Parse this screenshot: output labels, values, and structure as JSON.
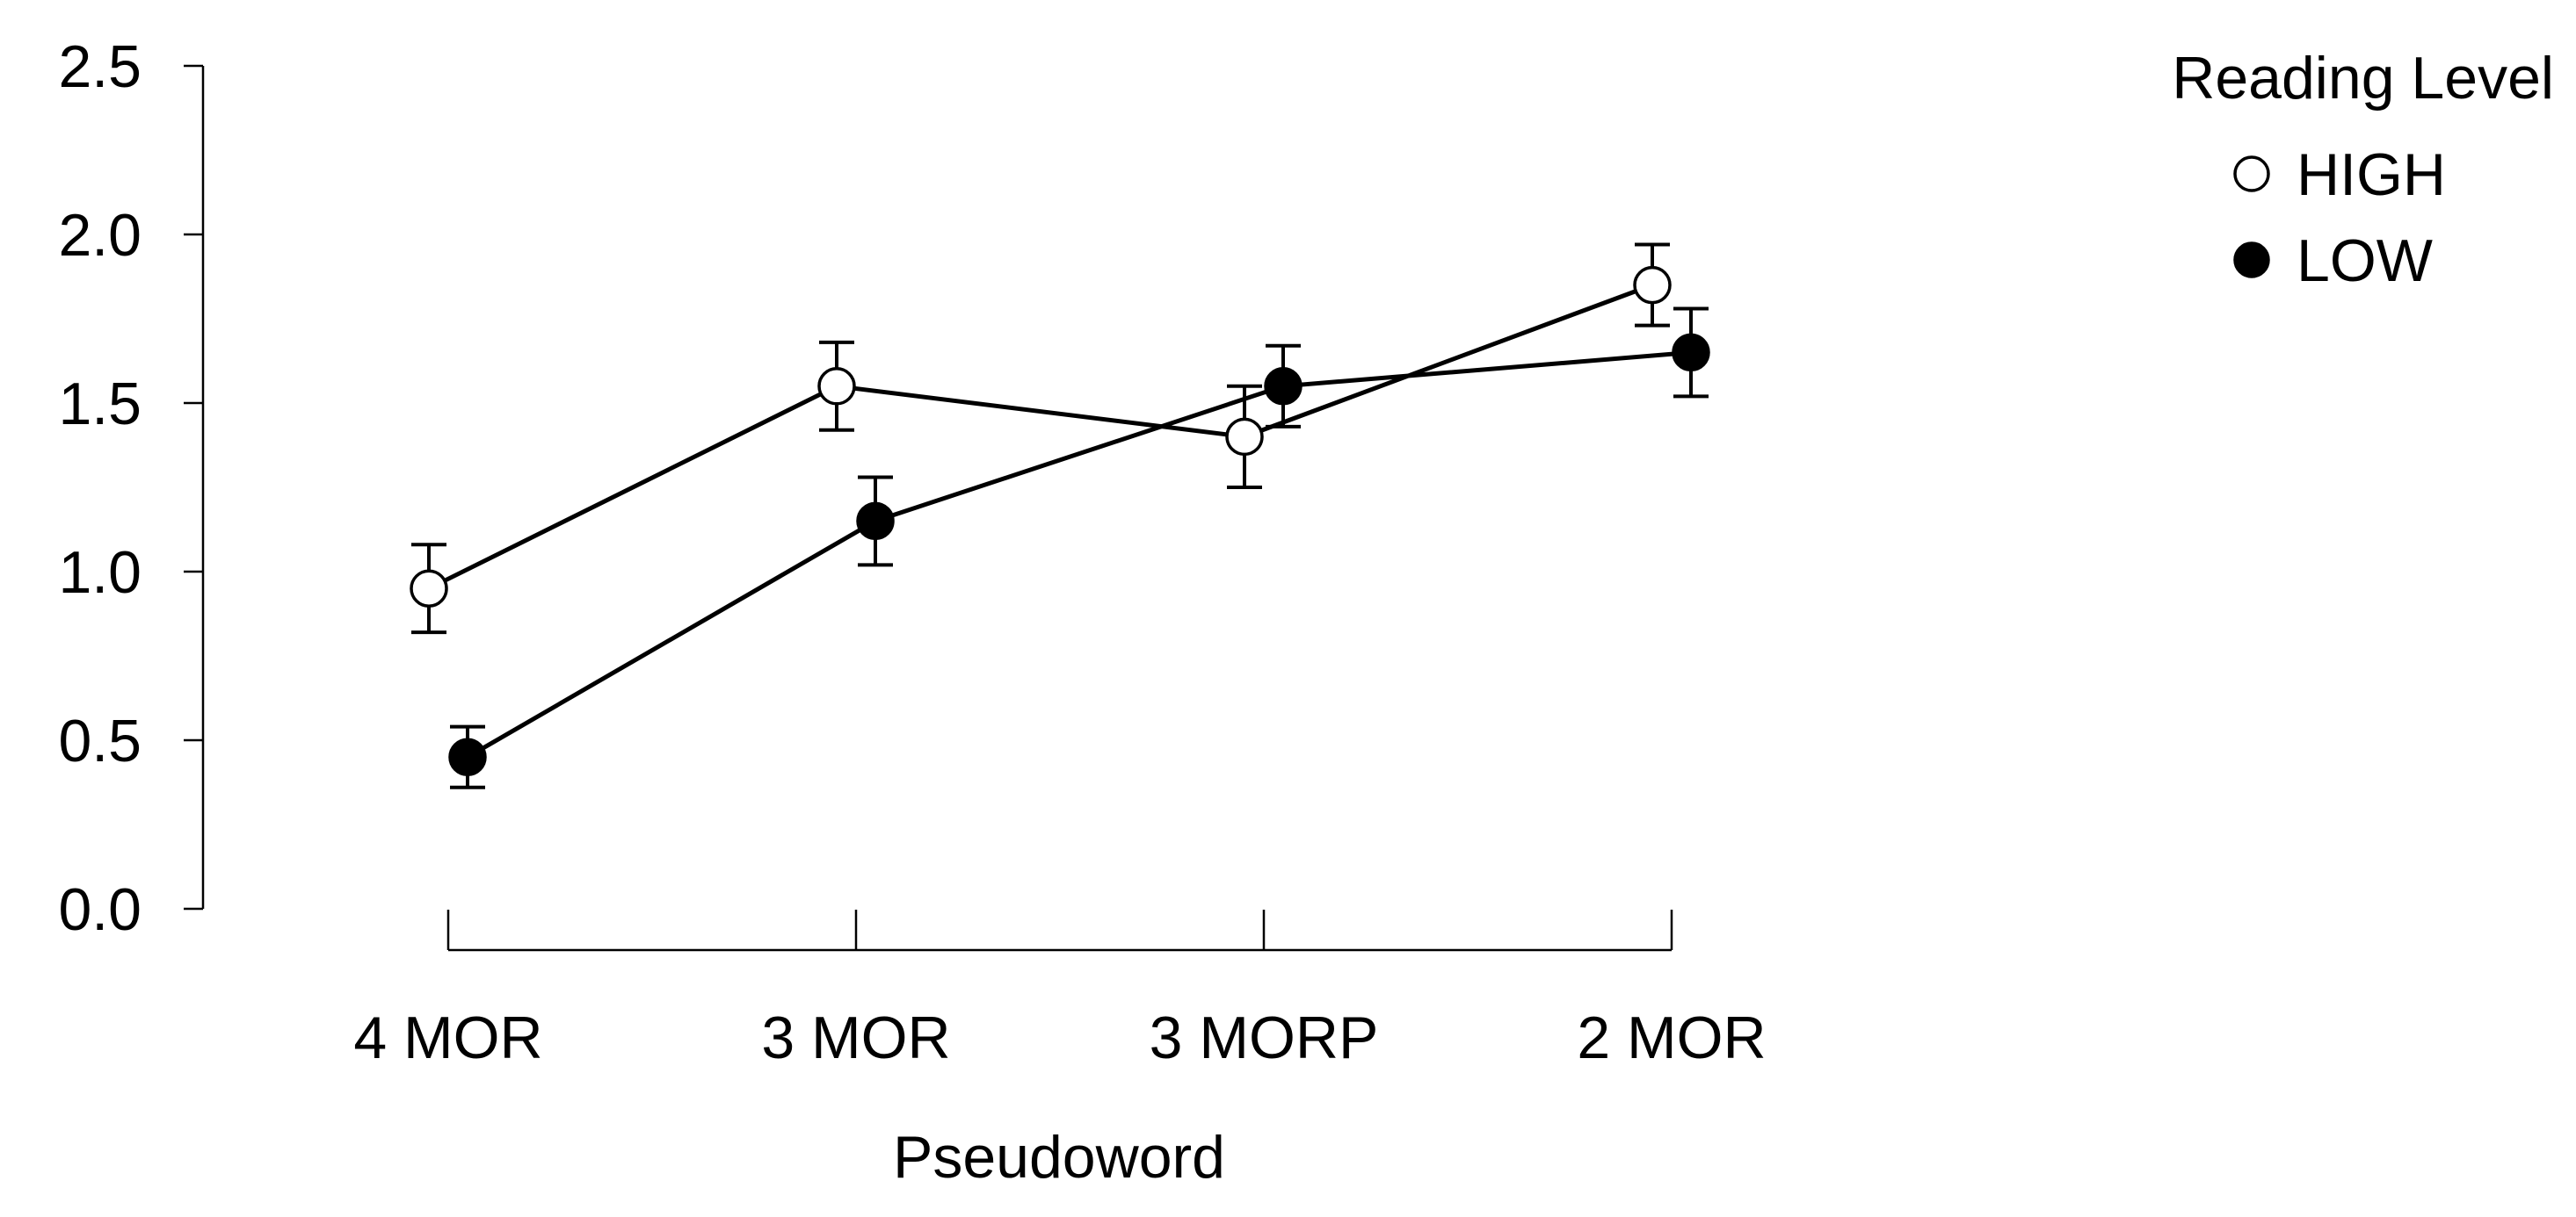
{
  "chart_data": {
    "type": "line",
    "title": "",
    "xlabel": "Pseudoword",
    "ylabel": "",
    "categories": [
      "4 MOR",
      "3 MOR",
      "3 MORP",
      "2 MOR"
    ],
    "ylim": [
      0,
      2.5
    ],
    "yticks": [
      "0.0",
      "0.5",
      "1.0",
      "1.5",
      "2.0",
      "2.5"
    ],
    "grid": false,
    "legend": {
      "title": "Reading Level",
      "placement": "top-right"
    },
    "series": [
      {
        "name": "HIGH",
        "marker": "open-circle",
        "values": [
          0.95,
          1.55,
          1.4,
          1.85
        ],
        "error_low": [
          0.82,
          1.42,
          1.25,
          1.73
        ],
        "error_high": [
          1.08,
          1.68,
          1.55,
          1.97
        ]
      },
      {
        "name": "LOW",
        "marker": "filled-circle",
        "values": [
          0.45,
          1.15,
          1.55,
          1.65
        ],
        "error_low": [
          0.36,
          1.02,
          1.43,
          1.52
        ],
        "error_high": [
          0.54,
          1.28,
          1.67,
          1.78
        ]
      }
    ],
    "colors": {
      "HIGH_fill": "#ffffff",
      "LOW_fill": "#000000",
      "stroke": "#000000"
    }
  }
}
